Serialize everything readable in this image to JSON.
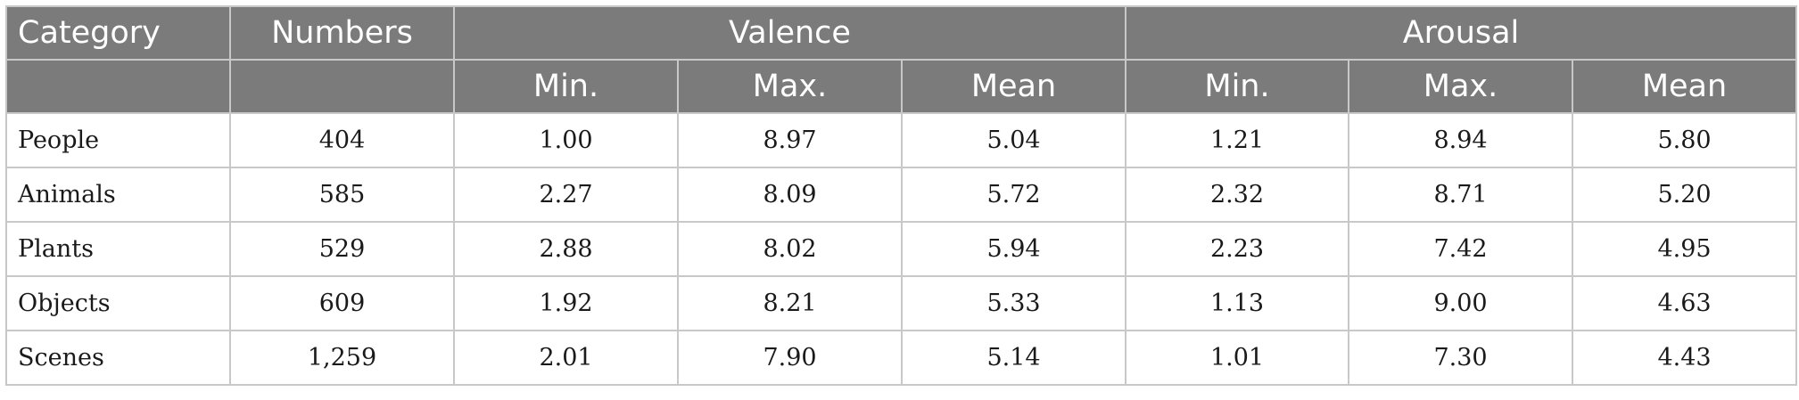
{
  "table": {
    "header": {
      "category": "Category",
      "numbers": "Numbers",
      "valence": "Valence",
      "arousal": "Arousal",
      "sub": [
        "Min.",
        "Max.",
        "Mean",
        "Min.",
        "Max.",
        "Mean"
      ]
    },
    "rows": [
      {
        "category": "People",
        "numbers": "404",
        "v_min": "1.00",
        "v_max": "8.97",
        "v_mean": "5.04",
        "a_min": "1.21",
        "a_max": "8.94",
        "a_mean": "5.80"
      },
      {
        "category": "Animals",
        "numbers": "585",
        "v_min": "2.27",
        "v_max": "8.09",
        "v_mean": "5.72",
        "a_min": "2.32",
        "a_max": "8.71",
        "a_mean": "5.20"
      },
      {
        "category": "Plants",
        "numbers": "529",
        "v_min": "2.88",
        "v_max": "8.02",
        "v_mean": "5.94",
        "a_min": "2.23",
        "a_max": "7.42",
        "a_mean": "4.95"
      },
      {
        "category": "Objects",
        "numbers": "609",
        "v_min": "1.92",
        "v_max": "8.21",
        "v_mean": "5.33",
        "a_min": "1.13",
        "a_max": "9.00",
        "a_mean": "4.63"
      },
      {
        "category": "Scenes",
        "numbers": "1,259",
        "v_min": "2.01",
        "v_max": "7.90",
        "v_mean": "5.14",
        "a_min": "1.01",
        "a_max": "7.30",
        "a_mean": "4.43"
      }
    ]
  },
  "colors": {
    "header_bg": "#7b7b7b",
    "header_text": "#ffffff",
    "border": "#c8c8c8",
    "body_text": "#1a1a1a"
  }
}
